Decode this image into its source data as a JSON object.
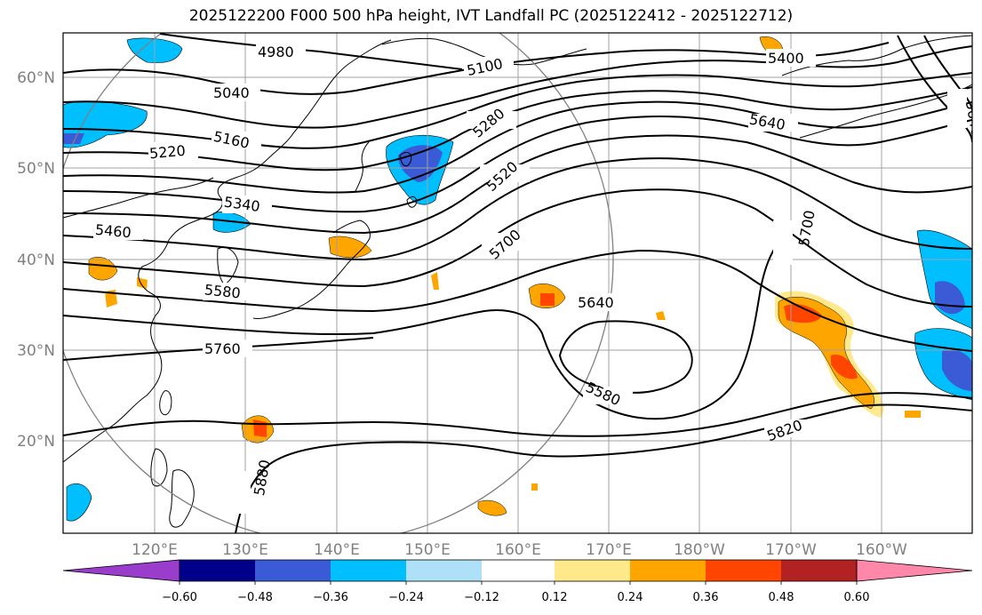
{
  "title": "2025122200 F000 500 hPa height, IVT Landfall PC (2025122412 - 2025122712)",
  "map": {
    "lon_labels": [
      "120°E",
      "130°E",
      "140°E",
      "150°E",
      "160°E",
      "170°E",
      "180°W",
      "170°W",
      "160°W"
    ],
    "lat_labels": [
      "60°N",
      "50°N",
      "40°N",
      "30°N",
      "20°N"
    ],
    "contour_labels": [
      "4980",
      "5040",
      "5100",
      "5160",
      "5220",
      "5280",
      "5340",
      "5400",
      "5460",
      "5520",
      "5580",
      "5640",
      "5700",
      "5760",
      "5820",
      "5880",
      "5580",
      "5640",
      "5700",
      "5640",
      "5400",
      "5640"
    ],
    "contour_label_values": [
      4980,
      5040,
      5100,
      5160,
      5220,
      5280,
      5340,
      5400,
      5460,
      5520,
      5580,
      5640,
      5700,
      5760,
      5820,
      5880
    ]
  },
  "colorbar": {
    "ticks": [
      "−0.60",
      "−0.48",
      "−0.36",
      "−0.24",
      "−0.12",
      "0.12",
      "0.24",
      "0.36",
      "0.48",
      "0.60"
    ],
    "colors": [
      "#9a3ccc",
      "#00008b",
      "#3b5bd6",
      "#00bfff",
      "#aee0f8",
      "#ffffff",
      "#ffe98a",
      "#ffa500",
      "#ff4500",
      "#b22222",
      "#ff88aa"
    ]
  },
  "colors": {
    "contour": "#000000",
    "grid": "#a0a0a0",
    "coast": "#000000",
    "circle": "#808080"
  }
}
